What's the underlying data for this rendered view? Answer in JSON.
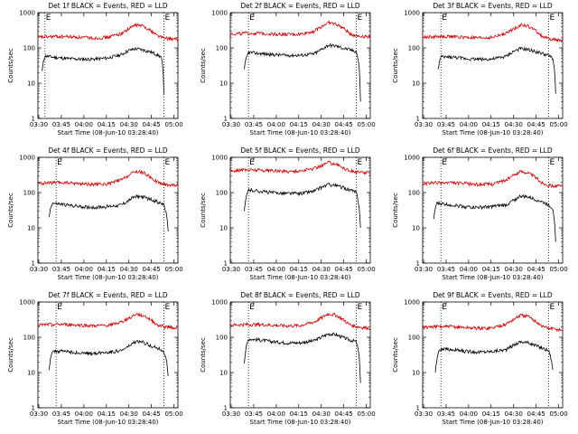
{
  "common": {
    "xlabel": "Start Time (08-Jun-10 03:28:40)",
    "ylabel": "Counts/sec",
    "x_ticks": [
      "03:30",
      "03:45",
      "04:00",
      "04:15",
      "04:30",
      "04:45",
      "05:00"
    ],
    "y_ticks": [
      "1",
      "10",
      "100",
      "1000"
    ],
    "marker_label": "E",
    "colors": {
      "events": "#000000",
      "lld": "#cc0000"
    }
  },
  "chart_data": [
    {
      "type": "line",
      "title": "Det 1f BLACK = Events, RED = LLD",
      "xlim": [
        0,
        100
      ],
      "ylim": [
        1,
        1000
      ],
      "yscale": "log",
      "event_markers": [
        5,
        90
      ],
      "series": [
        {
          "name": "Events",
          "color": "#000000",
          "x": [
            3,
            5,
            10,
            20,
            30,
            40,
            50,
            60,
            65,
            70,
            75,
            80,
            85,
            88,
            90
          ],
          "y": [
            22,
            60,
            55,
            50,
            48,
            48,
            52,
            65,
            85,
            95,
            88,
            78,
            65,
            55,
            5
          ]
        },
        {
          "name": "LLD",
          "color": "#cc0000",
          "x": [
            0,
            10,
            20,
            30,
            40,
            50,
            60,
            65,
            70,
            75,
            80,
            85,
            90,
            100
          ],
          "y": [
            200,
            210,
            210,
            200,
            190,
            200,
            260,
            350,
            450,
            420,
            320,
            230,
            190,
            170
          ]
        }
      ]
    },
    {
      "type": "line",
      "title": "Det 2f BLACK = Events, RED = LLD",
      "xlim": [
        0,
        100
      ],
      "ylim": [
        1,
        1000
      ],
      "yscale": "log",
      "event_markers": [
        13,
        90
      ],
      "series": [
        {
          "name": "Events",
          "color": "#000000",
          "x": [
            10,
            13,
            20,
            30,
            40,
            50,
            60,
            65,
            70,
            75,
            80,
            85,
            90,
            93
          ],
          "y": [
            25,
            75,
            70,
            65,
            62,
            62,
            68,
            90,
            120,
            115,
            100,
            90,
            80,
            3
          ]
        },
        {
          "name": "LLD",
          "color": "#cc0000",
          "x": [
            0,
            10,
            20,
            30,
            40,
            50,
            60,
            65,
            70,
            75,
            80,
            85,
            90,
            100
          ],
          "y": [
            250,
            260,
            260,
            250,
            240,
            245,
            300,
            400,
            520,
            480,
            380,
            260,
            220,
            210
          ]
        }
      ]
    },
    {
      "type": "line",
      "title": "Det 3f BLACK = Events, RED = LLD",
      "xlim": [
        0,
        100
      ],
      "ylim": [
        1,
        1000
      ],
      "yscale": "log",
      "event_markers": [
        13,
        90
      ],
      "series": [
        {
          "name": "Events",
          "color": "#000000",
          "x": [
            11,
            13,
            20,
            30,
            40,
            50,
            60,
            65,
            70,
            75,
            80,
            85,
            90,
            93,
            95
          ],
          "y": [
            25,
            55,
            55,
            50,
            48,
            48,
            58,
            80,
            95,
            90,
            80,
            70,
            60,
            50,
            5
          ]
        },
        {
          "name": "LLD",
          "color": "#cc0000",
          "x": [
            0,
            10,
            20,
            30,
            40,
            50,
            60,
            65,
            70,
            75,
            80,
            85,
            90,
            100
          ],
          "y": [
            200,
            210,
            210,
            200,
            190,
            200,
            260,
            350,
            450,
            420,
            320,
            220,
            180,
            160
          ]
        }
      ]
    },
    {
      "type": "line",
      "title": "Det 4f BLACK = Events, RED = LLD",
      "xlim": [
        0,
        100
      ],
      "ylim": [
        1,
        1000
      ],
      "yscale": "log",
      "event_markers": [
        13,
        90
      ],
      "series": [
        {
          "name": "Events",
          "color": "#000000",
          "x": [
            8,
            10,
            20,
            30,
            40,
            50,
            60,
            65,
            70,
            75,
            80,
            85,
            90,
            93
          ],
          "y": [
            20,
            50,
            45,
            40,
            38,
            40,
            45,
            60,
            80,
            75,
            65,
            55,
            45,
            8
          ]
        },
        {
          "name": "LLD",
          "color": "#cc0000",
          "x": [
            0,
            10,
            20,
            30,
            40,
            50,
            60,
            65,
            70,
            75,
            80,
            85,
            90,
            100
          ],
          "y": [
            180,
            190,
            190,
            180,
            170,
            175,
            230,
            310,
            400,
            370,
            280,
            200,
            170,
            160
          ]
        }
      ]
    },
    {
      "type": "line",
      "title": "Det 5f BLACK = Events, RED = LLD",
      "xlim": [
        0,
        100
      ],
      "ylim": [
        1,
        1000
      ],
      "yscale": "log",
      "event_markers": [
        13,
        90
      ],
      "series": [
        {
          "name": "Events",
          "color": "#000000",
          "x": [
            10,
            13,
            20,
            30,
            40,
            50,
            60,
            65,
            70,
            75,
            80,
            85,
            90,
            93
          ],
          "y": [
            30,
            120,
            110,
            100,
            95,
            95,
            110,
            140,
            170,
            160,
            140,
            120,
            100,
            10
          ]
        },
        {
          "name": "LLD",
          "color": "#cc0000",
          "x": [
            0,
            10,
            20,
            30,
            40,
            50,
            60,
            65,
            70,
            75,
            80,
            85,
            90,
            100
          ],
          "y": [
            420,
            440,
            440,
            420,
            400,
            410,
            480,
            580,
            720,
            660,
            520,
            420,
            380,
            360
          ]
        }
      ]
    },
    {
      "type": "line",
      "title": "Det 6f BLACK = Events, RED = LLD",
      "xlim": [
        0,
        100
      ],
      "ylim": [
        1,
        1000
      ],
      "yscale": "log",
      "event_markers": [
        13,
        90
      ],
      "series": [
        {
          "name": "Events",
          "color": "#000000",
          "x": [
            8,
            10,
            20,
            30,
            40,
            50,
            60,
            65,
            70,
            75,
            80,
            85,
            90,
            93,
            95
          ],
          "y": [
            18,
            50,
            45,
            40,
            38,
            40,
            45,
            60,
            80,
            75,
            65,
            55,
            45,
            35,
            4
          ]
        },
        {
          "name": "LLD",
          "color": "#cc0000",
          "x": [
            0,
            10,
            20,
            30,
            40,
            50,
            60,
            65,
            70,
            75,
            80,
            85,
            90,
            100
          ],
          "y": [
            180,
            190,
            190,
            180,
            170,
            175,
            230,
            310,
            400,
            370,
            280,
            190,
            160,
            150
          ]
        }
      ]
    },
    {
      "type": "line",
      "title": "Det 7f BLACK = Events, RED = LLD",
      "xlim": [
        0,
        100
      ],
      "ylim": [
        1,
        1000
      ],
      "yscale": "log",
      "event_markers": [
        13,
        90
      ],
      "series": [
        {
          "name": "Events",
          "color": "#000000",
          "x": [
            8,
            10,
            20,
            30,
            40,
            50,
            60,
            65,
            70,
            75,
            80,
            85,
            90,
            93
          ],
          "y": [
            12,
            40,
            40,
            35,
            35,
            38,
            42,
            55,
            75,
            72,
            60,
            50,
            40,
            8
          ]
        },
        {
          "name": "LLD",
          "color": "#cc0000",
          "x": [
            0,
            10,
            20,
            30,
            40,
            50,
            60,
            65,
            70,
            75,
            80,
            85,
            90,
            100
          ],
          "y": [
            220,
            230,
            230,
            220,
            210,
            215,
            270,
            350,
            450,
            420,
            320,
            230,
            200,
            190
          ]
        }
      ]
    },
    {
      "type": "line",
      "title": "Det 8f BLACK = Events, RED = LLD",
      "xlim": [
        0,
        100
      ],
      "ylim": [
        1,
        1000
      ],
      "yscale": "log",
      "event_markers": [
        13,
        90
      ],
      "series": [
        {
          "name": "Events",
          "color": "#000000",
          "x": [
            10,
            13,
            20,
            30,
            40,
            50,
            60,
            65,
            70,
            75,
            80,
            85,
            90,
            93
          ],
          "y": [
            18,
            90,
            85,
            75,
            70,
            70,
            80,
            100,
            125,
            120,
            100,
            85,
            75,
            5
          ]
        },
        {
          "name": "LLD",
          "color": "#cc0000",
          "x": [
            0,
            10,
            20,
            30,
            40,
            50,
            60,
            65,
            70,
            75,
            80,
            85,
            90,
            100
          ],
          "y": [
            220,
            230,
            230,
            220,
            210,
            215,
            270,
            350,
            460,
            430,
            330,
            230,
            200,
            180
          ]
        }
      ]
    },
    {
      "type": "line",
      "title": "Det 9f BLACK = Events, RED = LLD",
      "xlim": [
        0,
        100
      ],
      "ylim": [
        1,
        1000
      ],
      "yscale": "log",
      "event_markers": [
        13,
        90
      ],
      "series": [
        {
          "name": "Events",
          "color": "#000000",
          "x": [
            9,
            12,
            20,
            30,
            40,
            50,
            60,
            65,
            70,
            75,
            80,
            85,
            90,
            93
          ],
          "y": [
            10,
            45,
            45,
            40,
            38,
            40,
            45,
            60,
            75,
            70,
            60,
            50,
            42,
            12
          ]
        },
        {
          "name": "LLD",
          "color": "#cc0000",
          "x": [
            0,
            10,
            20,
            30,
            40,
            50,
            60,
            65,
            70,
            75,
            80,
            85,
            90,
            100
          ],
          "y": [
            190,
            200,
            200,
            190,
            180,
            185,
            240,
            320,
            420,
            390,
            300,
            210,
            180,
            160
          ]
        }
      ]
    }
  ]
}
